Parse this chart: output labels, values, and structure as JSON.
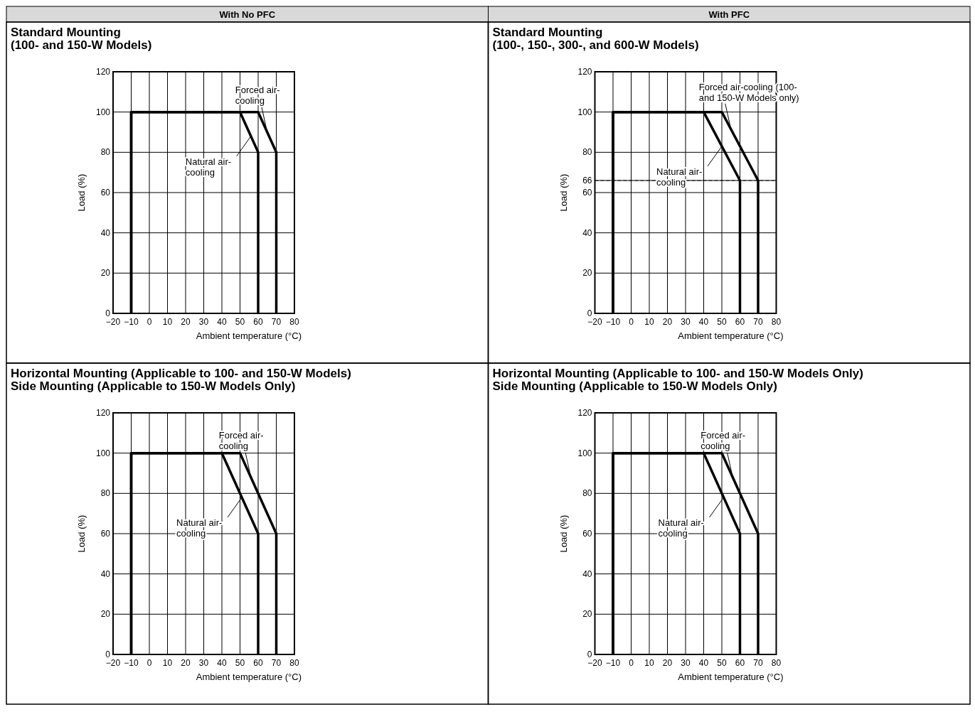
{
  "chart_data": [
    {
      "type": "line",
      "subtitle": "With No PFC",
      "title": "Standard Mounting\n(100- and 150-W Models)",
      "xlabel": "Ambient temperature (°C)",
      "ylabel": "Load (%)",
      "xlim": [
        -20,
        80
      ],
      "xticks": [
        -20,
        -10,
        0,
        10,
        20,
        30,
        40,
        50,
        60,
        70,
        80
      ],
      "ylim": [
        0,
        120
      ],
      "yticks": [
        0,
        20,
        40,
        60,
        80,
        100,
        120
      ],
      "grid": true,
      "series": [
        {
          "color": "#000000",
          "x": [
            -10,
            -10,
            60,
            70,
            70
          ],
          "values": [
            0,
            100,
            100,
            80,
            0
          ]
        },
        {
          "color": "#000000",
          "x": [
            -10,
            -10,
            50,
            60,
            60
          ],
          "values": [
            0,
            100,
            100,
            80,
            0
          ]
        }
      ],
      "annotations": [
        {
          "text": "Forced air-cooling",
          "x": 65,
          "y": 90
        },
        {
          "text": "Natural air-cooling",
          "x": 56,
          "y": 88
        }
      ]
    },
    {
      "type": "line",
      "subtitle": "With PFC",
      "title": "Standard Mounting\n(100-, 150-, 300-, and 600-W Models)",
      "xlabel": "Ambient temperature (°C)",
      "ylabel": "Load (%)",
      "xlim": [
        -20,
        80
      ],
      "xticks": [
        -20,
        -10,
        0,
        10,
        20,
        30,
        40,
        50,
        60,
        70,
        80
      ],
      "ylim": [
        0,
        120
      ],
      "yticks": [
        0,
        20,
        40,
        60,
        66,
        80,
        100,
        120
      ],
      "grid": true,
      "series": [
        {
          "color": "#000000",
          "x": [
            -10,
            -10,
            50,
            70,
            70
          ],
          "values": [
            0,
            100,
            100,
            66,
            0
          ]
        },
        {
          "color": "#000000",
          "x": [
            -10,
            -10,
            40,
            60,
            60
          ],
          "values": [
            0,
            100,
            100,
            66,
            0
          ]
        }
      ],
      "ref_lines": [
        {
          "axis": "y",
          "value": 66,
          "color": "#000000",
          "line_style": "dashed"
        }
      ],
      "annotations": [
        {
          "text": "Forced air-cooling (100- and 150-W Models only)",
          "x": 55,
          "y": 91.5
        },
        {
          "text": "Natural air-cooling",
          "x": 50,
          "y": 83
        }
      ]
    },
    {
      "type": "line",
      "title": "Horizontal Mounting (Applicable to 100- and 150-W Models)\nSide Mounting (Applicable to 150-W Models Only)",
      "xlabel": "Ambient temperature (°C)",
      "ylabel": "Load (%)",
      "xlim": [
        -20,
        80
      ],
      "xticks": [
        -20,
        -10,
        0,
        10,
        20,
        30,
        40,
        50,
        60,
        70,
        80
      ],
      "ylim": [
        0,
        120
      ],
      "yticks": [
        0,
        20,
        40,
        60,
        80,
        100,
        120
      ],
      "grid": true,
      "series": [
        {
          "color": "#000000",
          "x": [
            -10,
            -10,
            50,
            70,
            70
          ],
          "values": [
            0,
            100,
            100,
            60,
            0
          ]
        },
        {
          "color": "#000000",
          "x": [
            -10,
            -10,
            40,
            60,
            60
          ],
          "values": [
            0,
            100,
            100,
            60,
            0
          ]
        }
      ],
      "annotations": [
        {
          "text": "Forced air-cooling",
          "x": 56,
          "y": 88
        },
        {
          "text": "Natural air-cooling",
          "x": 51,
          "y": 78
        }
      ]
    },
    {
      "type": "line",
      "title": "Horizontal Mounting (Applicable to 100- and 150-W Models Only)\nSide Mounting (Applicable to 150-W Models Only)",
      "xlabel": "Ambient temperature (°C)",
      "ylabel": "Load (%)",
      "xlim": [
        -20,
        80
      ],
      "xticks": [
        -20,
        -10,
        0,
        10,
        20,
        30,
        40,
        50,
        60,
        70,
        80
      ],
      "ylim": [
        0,
        120
      ],
      "yticks": [
        0,
        20,
        40,
        60,
        80,
        100,
        120
      ],
      "grid": true,
      "series": [
        {
          "color": "#000000",
          "x": [
            -10,
            -10,
            50,
            70,
            70
          ],
          "values": [
            0,
            100,
            100,
            60,
            0
          ]
        },
        {
          "color": "#000000",
          "x": [
            -10,
            -10,
            40,
            60,
            60
          ],
          "values": [
            0,
            100,
            100,
            60,
            0
          ]
        }
      ],
      "annotations": [
        {
          "text": "Forced air-cooling",
          "x": 56,
          "y": 88
        },
        {
          "text": "Natural air-cooling",
          "x": 51,
          "y": 78
        }
      ]
    }
  ]
}
